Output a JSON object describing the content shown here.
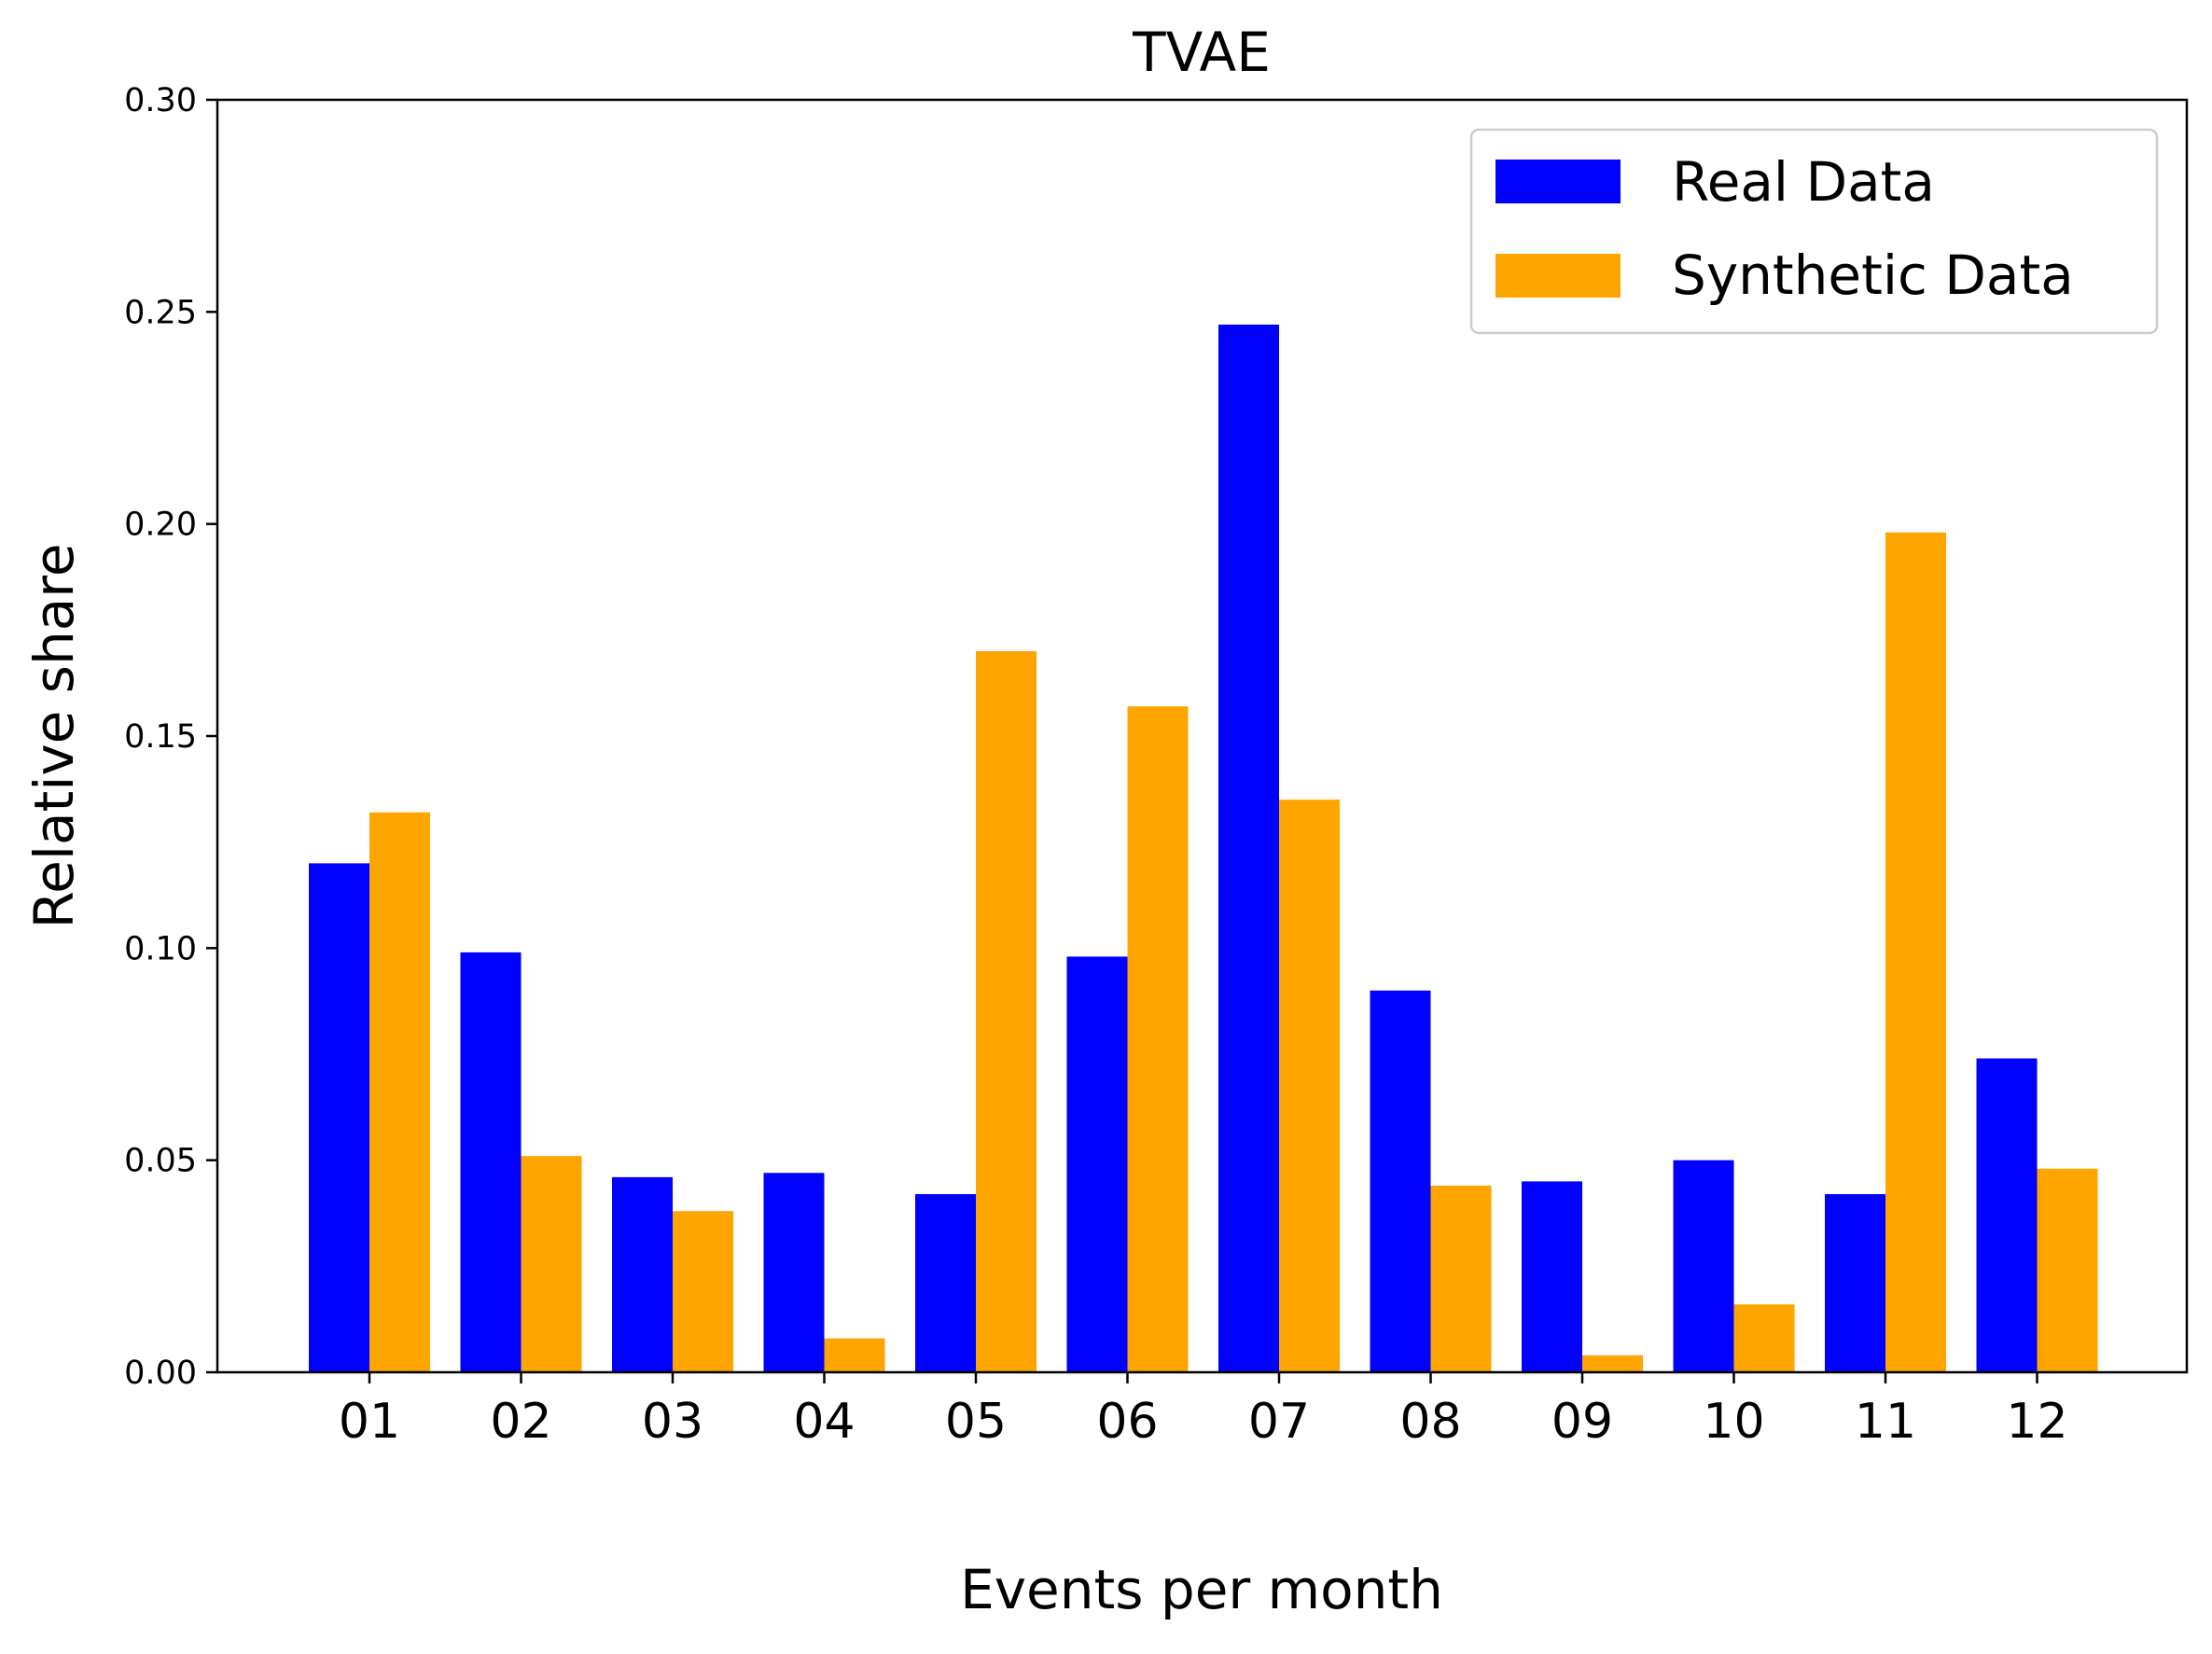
{
  "chart_data": {
    "type": "bar",
    "title": "TVAE",
    "xlabel": "Events per month",
    "ylabel": "Relative share",
    "categories": [
      "01",
      "02",
      "03",
      "04",
      "05",
      "06",
      "07",
      "08",
      "09",
      "10",
      "11",
      "12"
    ],
    "ylim": [
      0,
      0.3
    ],
    "yticks": [
      "0.00",
      "0.05",
      "0.10",
      "0.15",
      "0.20",
      "0.25",
      "0.30"
    ],
    "legend_position": "top-right",
    "grid": false,
    "series": [
      {
        "name": "Real Data",
        "color": "#0000ff",
        "values": [
          0.12,
          0.099,
          0.046,
          0.047,
          0.042,
          0.098,
          0.247,
          0.09,
          0.045,
          0.05,
          0.042,
          0.074
        ]
      },
      {
        "name": "Synthetic Data",
        "color": "#ffa500",
        "values": [
          0.132,
          0.051,
          0.038,
          0.008,
          0.17,
          0.157,
          0.135,
          0.044,
          0.004,
          0.016,
          0.198,
          0.048
        ]
      }
    ]
  }
}
